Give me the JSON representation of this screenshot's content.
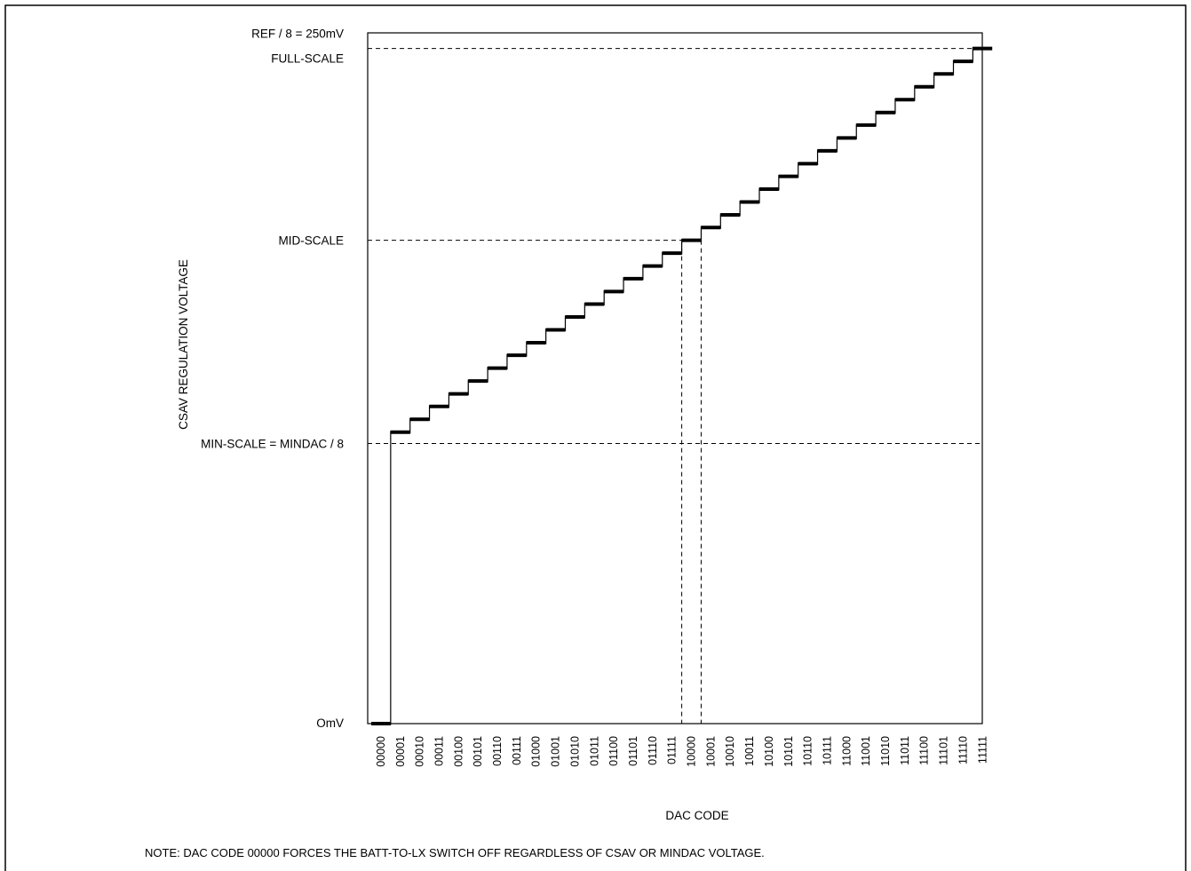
{
  "chart_data": {
    "type": "line",
    "title": "",
    "xlabel": "DAC CODE",
    "ylabel": "CSAV REGULATION VOLTAGE",
    "categories": [
      "00000",
      "00001",
      "00010",
      "00011",
      "00100",
      "00101",
      "00110",
      "00111",
      "01000",
      "01001",
      "01010",
      "01011",
      "01100",
      "01101",
      "01110",
      "01111",
      "10000",
      "10001",
      "10010",
      "10011",
      "10100",
      "10101",
      "10110",
      "10111",
      "11000",
      "11001",
      "11010",
      "11011",
      "11100",
      "11101",
      "11110",
      "11111"
    ],
    "series": [
      {
        "values": [
          0,
          115.6,
          120.7,
          125.8,
          130.8,
          135.9,
          141.0,
          146.1,
          151.1,
          156.2,
          161.3,
          166.4,
          171.4,
          176.5,
          181.5,
          186.6,
          191.7,
          196.8,
          201.8,
          206.9,
          212.0,
          217.1,
          222.1,
          227.2,
          232.3,
          237.4,
          242.4,
          247.5,
          252.6,
          257.7,
          262.7,
          267.8
        ]
      }
    ],
    "reference_lines": [
      {
        "label": "REF / 8 = 250mV",
        "label2": "FULL-SCALE",
        "value": 267.8
      },
      {
        "label": "MID-SCALE",
        "value": 191.7
      },
      {
        "label": "MIN-SCALE = MINDAC / 8",
        "value": 111.1
      }
    ],
    "zero_label": "OmV",
    "vertical_markers": [
      "01111",
      "10000"
    ],
    "ylim": [
      0,
      274
    ],
    "grid": false,
    "legend": "none",
    "note": "NOTE: DAC CODE 00000 FORCES THE BATT-TO-LX SWITCH OFF REGARDLESS OF CSAV OR MINDAC VOLTAGE."
  }
}
